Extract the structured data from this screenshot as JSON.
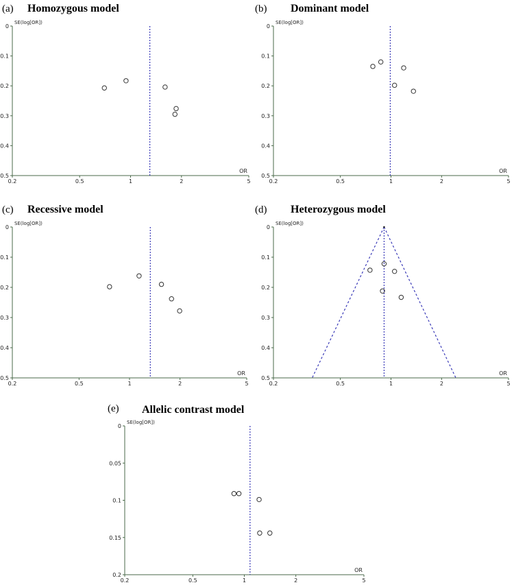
{
  "panels": [
    {
      "label": "(a)",
      "title": "Homozygous model"
    },
    {
      "label": "(b)",
      "title": "Dominant model"
    },
    {
      "label": "(c)",
      "title": "Recessive model"
    },
    {
      "label": "(d)",
      "title": "Heterozygous model"
    },
    {
      "label": "(e)",
      "title": "Allelic contrast model"
    }
  ],
  "chart_data": [
    {
      "type": "scatter",
      "title": "Homozygous model",
      "xlabel": "OR",
      "ylabel": "SE(log[OR])",
      "x_scale": "log",
      "xlim": [
        0.2,
        5
      ],
      "ylim": [
        0,
        0.5
      ],
      "y_inverted": true,
      "x_ticks": [
        "0.2",
        "0.5",
        "1",
        "2",
        "5"
      ],
      "y_ticks": [
        "0",
        "0.1",
        "0.2",
        "0.3",
        "0.4",
        "0.5"
      ],
      "reference_line_or": 1.3,
      "funnel": false,
      "points": [
        {
          "or": 0.7,
          "se": 0.207
        },
        {
          "or": 0.94,
          "se": 0.183
        },
        {
          "or": 1.6,
          "se": 0.204
        },
        {
          "or": 1.86,
          "se": 0.276
        },
        {
          "or": 1.83,
          "se": 0.295
        }
      ]
    },
    {
      "type": "scatter",
      "title": "Dominant model",
      "xlabel": "OR",
      "ylabel": "SE(log[OR])",
      "x_scale": "log",
      "xlim": [
        0.2,
        5
      ],
      "ylim": [
        0,
        0.5
      ],
      "y_inverted": true,
      "x_ticks": [
        "0.2",
        "0.5",
        "1",
        "2",
        "5"
      ],
      "y_ticks": [
        "0",
        "0.1",
        "0.2",
        "0.3",
        "0.4",
        "0.5"
      ],
      "reference_line_or": 0.99,
      "funnel": false,
      "points": [
        {
          "or": 0.78,
          "se": 0.135
        },
        {
          "or": 0.87,
          "se": 0.12
        },
        {
          "or": 1.05,
          "se": 0.198
        },
        {
          "or": 1.19,
          "se": 0.14
        },
        {
          "or": 1.36,
          "se": 0.218
        }
      ]
    },
    {
      "type": "scatter",
      "title": "Recessive model",
      "xlabel": "OR",
      "ylabel": "SE(log[OR])",
      "x_scale": "log",
      "xlim": [
        0.2,
        5
      ],
      "ylim": [
        0,
        0.5
      ],
      "y_inverted": true,
      "x_ticks": [
        "0.2",
        "0.5",
        "1",
        "2",
        "5"
      ],
      "y_ticks": [
        "0",
        "0.1",
        "0.2",
        "0.3",
        "0.4",
        "0.5"
      ],
      "reference_line_or": 1.33,
      "funnel": false,
      "points": [
        {
          "or": 0.76,
          "se": 0.198
        },
        {
          "or": 1.14,
          "se": 0.162
        },
        {
          "or": 1.55,
          "se": 0.19
        },
        {
          "or": 1.78,
          "se": 0.238
        },
        {
          "or": 1.99,
          "se": 0.278
        }
      ]
    },
    {
      "type": "scatter",
      "title": "Heterozygous model",
      "xlabel": "OR",
      "ylabel": "SE(log[OR])",
      "x_scale": "log",
      "xlim": [
        0.2,
        5
      ],
      "ylim": [
        0,
        0.5
      ],
      "y_inverted": true,
      "x_ticks": [
        "0.2",
        "0.5",
        "1",
        "2",
        "5"
      ],
      "y_ticks": [
        "0",
        "0.1",
        "0.2",
        "0.3",
        "0.4",
        "0.5"
      ],
      "reference_line_or": 0.91,
      "funnel": true,
      "funnel_bounds_at_max_se": [
        0.34,
        2.43
      ],
      "points": [
        {
          "or": 0.75,
          "se": 0.143
        },
        {
          "or": 0.91,
          "se": 0.122
        },
        {
          "or": 0.89,
          "se": 0.212
        },
        {
          "or": 1.05,
          "se": 0.147
        },
        {
          "or": 1.15,
          "se": 0.233
        }
      ]
    },
    {
      "type": "scatter",
      "title": "Allelic contrast model",
      "xlabel": "OR",
      "ylabel": "SE(log[OR])",
      "x_scale": "log",
      "xlim": [
        0.2,
        5
      ],
      "ylim": [
        0,
        0.2
      ],
      "y_inverted": true,
      "x_ticks": [
        "0.2",
        "0.5",
        "1",
        "2",
        "5"
      ],
      "y_ticks": [
        "0",
        "0.05",
        "0.1",
        "0.15",
        "0.2"
      ],
      "reference_line_or": 1.08,
      "funnel": false,
      "points": [
        {
          "or": 0.87,
          "se": 0.091
        },
        {
          "or": 0.93,
          "se": 0.091
        },
        {
          "or": 1.22,
          "se": 0.099
        },
        {
          "or": 1.23,
          "se": 0.144
        },
        {
          "or": 1.41,
          "se": 0.144
        }
      ]
    }
  ]
}
